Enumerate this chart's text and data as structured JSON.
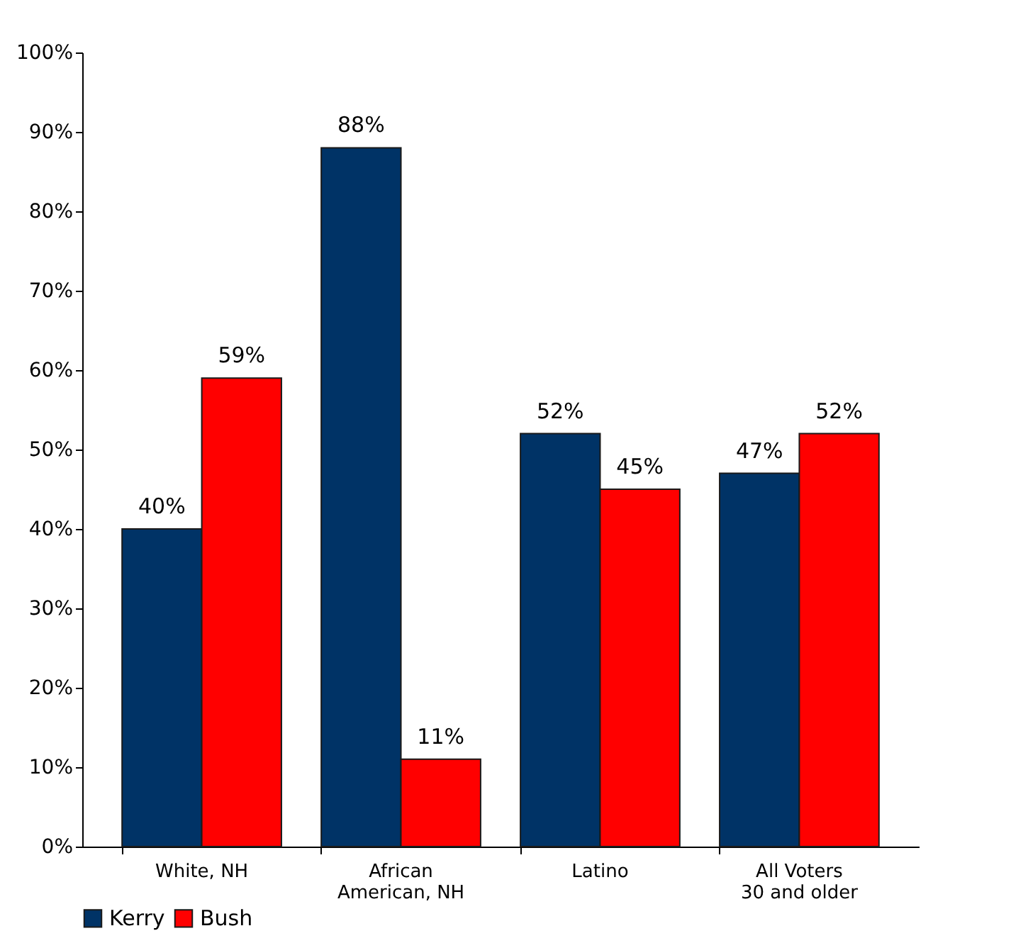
{
  "chart_data": {
    "type": "bar",
    "categories": [
      "White, NH",
      "African American, NH",
      "Latino",
      "All Voters 30 and older"
    ],
    "series": [
      {
        "name": "Kerry",
        "color": "#003366",
        "values": [
          40,
          88,
          52,
          47
        ]
      },
      {
        "name": "Bush",
        "color": "#ff0000",
        "values": [
          59,
          11,
          45,
          52
        ]
      }
    ],
    "ylim": [
      0,
      100
    ],
    "yticks": [
      {
        "value": 0,
        "label": "0%"
      },
      {
        "value": 10,
        "label": "10%"
      },
      {
        "value": 20,
        "label": "20%"
      },
      {
        "value": 30,
        "label": "30%"
      },
      {
        "value": 40,
        "label": "40%"
      },
      {
        "value": 50,
        "label": "50%"
      },
      {
        "value": 60,
        "label": "60%"
      },
      {
        "value": 70,
        "label": "70%"
      },
      {
        "value": 80,
        "label": "80%"
      },
      {
        "value": 90,
        "label": "90%"
      },
      {
        "value": 100,
        "label": "100%"
      }
    ],
    "value_labels": [
      [
        "40%",
        "88%",
        "52%",
        "47%"
      ],
      [
        "59%",
        "11%",
        "45%",
        "52%"
      ]
    ],
    "legend": "bottom",
    "grid": false
  }
}
